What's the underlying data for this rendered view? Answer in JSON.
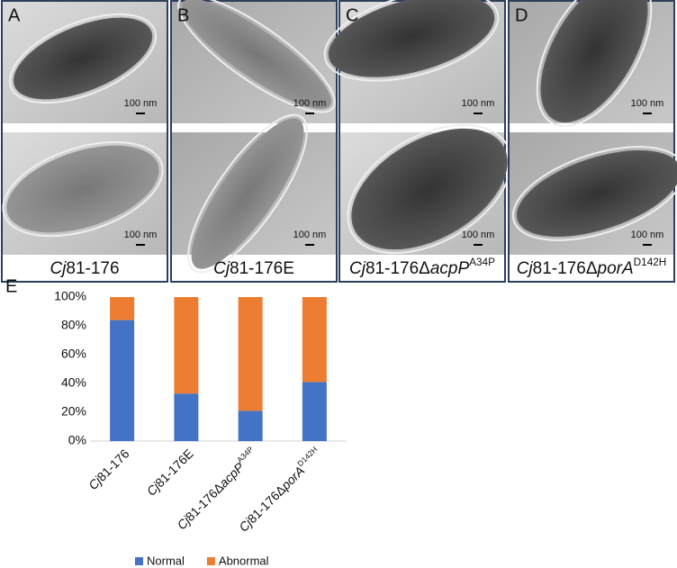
{
  "panels": [
    {
      "label": "A",
      "scale_labels": [
        "100 nm",
        "100 nm"
      ],
      "caption": [
        {
          "text": "Cj",
          "italic": true
        },
        {
          "text": "81-176"
        }
      ]
    },
    {
      "label": "B",
      "scale_labels": [
        "100 nm",
        "100 nm"
      ],
      "caption": [
        {
          "text": "Cj",
          "italic": true
        },
        {
          "text": "81-176E"
        }
      ]
    },
    {
      "label": "C",
      "scale_labels": [
        "100 nm",
        "100 nm"
      ],
      "caption": [
        {
          "text": "Cj",
          "italic": true
        },
        {
          "text": "81-176Δ"
        },
        {
          "text": "acpP",
          "italic": true
        },
        {
          "text": "A34P",
          "sup": true
        }
      ]
    },
    {
      "label": "D",
      "scale_labels": [
        "100 nm",
        "100 nm"
      ],
      "caption": [
        {
          "text": "Cj",
          "italic": true
        },
        {
          "text": "81-176Δ"
        },
        {
          "text": "porA",
          "italic": true
        },
        {
          "text": "D142H",
          "sup": true
        }
      ]
    }
  ],
  "chart_data": {
    "type": "stacked_bar",
    "label": "E",
    "categories": [
      [
        {
          "text": "Cj",
          "italic": true
        },
        {
          "text": "81-176"
        }
      ],
      [
        {
          "text": "Cj",
          "italic": true
        },
        {
          "text": "81-176E"
        }
      ],
      [
        {
          "text": "Cj",
          "italic": true
        },
        {
          "text": "81-176Δ"
        },
        {
          "text": "acpP",
          "italic": true
        },
        {
          "text": "A34P",
          "sup": true
        }
      ],
      [
        {
          "text": "Cj",
          "italic": true
        },
        {
          "text": "81-176Δ"
        },
        {
          "text": "porA",
          "italic": true
        },
        {
          "text": "D142H",
          "sup": true
        }
      ]
    ],
    "series": [
      {
        "name": "Normal",
        "color": "#4472c4",
        "values": [
          84,
          33,
          21,
          41
        ]
      },
      {
        "name": "Abnormal",
        "color": "#ed7d31",
        "values": [
          16,
          67,
          79,
          59
        ]
      }
    ],
    "ylim": [
      0,
      100
    ],
    "yticks": [
      {
        "value": 0,
        "label": "0%"
      },
      {
        "value": 20,
        "label": "20%"
      },
      {
        "value": 40,
        "label": "40%"
      },
      {
        "value": 60,
        "label": "60%"
      },
      {
        "value": 80,
        "label": "80%"
      },
      {
        "value": 100,
        "label": "100%"
      }
    ],
    "grid": false,
    "legend": "bottom"
  }
}
